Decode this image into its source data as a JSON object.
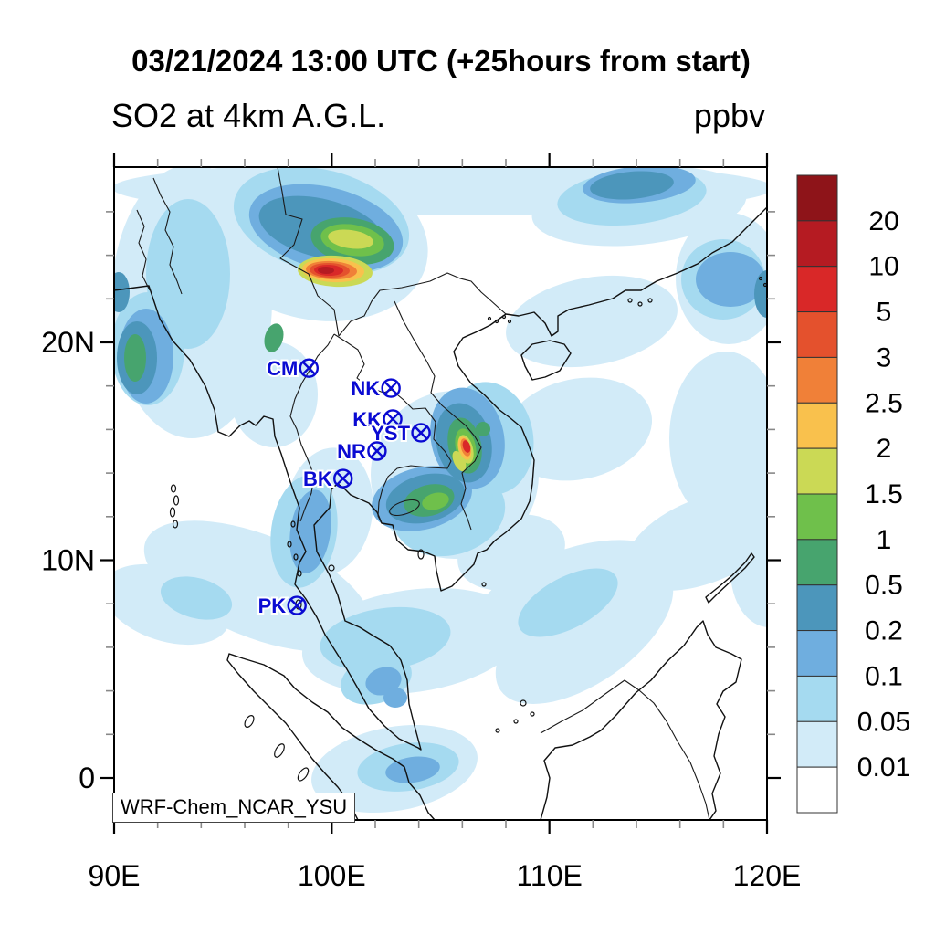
{
  "header": {
    "title": "03/21/2024 13:00 UTC (+25hours from start)",
    "subtitle": "SO2 at 4km A.G.L.",
    "units_label": "ppbv"
  },
  "model_label": "WRF-Chem_NCAR_YSU",
  "axes": {
    "x": {
      "majors": [
        {
          "value": 90,
          "label": "90E"
        },
        {
          "value": 100,
          "label": "100E"
        },
        {
          "value": 110,
          "label": "110E"
        },
        {
          "value": 120,
          "label": "120E"
        }
      ],
      "minor_step": 2,
      "range": [
        90,
        120
      ]
    },
    "y": {
      "majors": [
        {
          "value": 0,
          "label": "0"
        },
        {
          "value": 10,
          "label": "10N"
        },
        {
          "value": 20,
          "label": "20N"
        }
      ],
      "minor_step": 2,
      "range": [
        -1.93,
        28.05
      ]
    }
  },
  "colorbar": {
    "cells_top_to_bottom": [
      "#8E1419",
      "#B51B22",
      "#D92828",
      "#E4512D",
      "#F08038",
      "#F9C14D",
      "#CBD955",
      "#6FC04B",
      "#47A46E",
      "#4C96BB",
      "#6FAEDF",
      "#A5DAF0",
      "#D2EBF8",
      "#FFFFFF"
    ],
    "boundary_labels_top_to_bottom": [
      "20",
      "10",
      "5",
      "3",
      "2.5",
      "2",
      "1.5",
      "1",
      "0.5",
      "0.2",
      "0.1",
      "0.05",
      "0.01"
    ]
  },
  "stations": [
    {
      "id": "CM",
      "lon_e": 98.95,
      "lat_n": 18.82,
      "marker": "circle-cross"
    },
    {
      "id": "NK",
      "lon_e": 102.72,
      "lat_n": 17.9,
      "marker": "circle-cross"
    },
    {
      "id": "KK",
      "lon_e": 102.8,
      "lat_n": 16.48,
      "marker": "circle-cross"
    },
    {
      "id": "YST",
      "lon_e": 104.1,
      "lat_n": 15.85,
      "marker": "circle-cross"
    },
    {
      "id": "NR",
      "lon_e": 102.08,
      "lat_n": 15.01,
      "marker": "circle-cross"
    },
    {
      "id": "BK",
      "lon_e": 100.52,
      "lat_n": 13.75,
      "marker": "circle-cross"
    },
    {
      "id": "PK",
      "lon_e": 98.4,
      "lat_n": 7.92,
      "marker": "circle-cross"
    }
  ],
  "station_color": "#0a0ad2",
  "chart_data": {
    "type": "heatmap",
    "title": "SO2 at 4km A.G.L.",
    "valid_time": "03/21/2024 13:00 UTC",
    "forecast_note": "+25hours from start",
    "units": "ppbv",
    "model": "WRF-Chem_NCAR_YSU",
    "projection": "lat-lon map, Southeast Asia",
    "x_ticks": [
      "90E",
      "100E",
      "110E",
      "120E"
    ],
    "y_ticks": [
      "0",
      "10N",
      "20N"
    ],
    "lon_range_e": [
      90,
      120
    ],
    "lat_range_n": [
      -2,
      28
    ],
    "contour_levels_ppbv": [
      0.01,
      0.05,
      0.1,
      0.2,
      0.5,
      1,
      1.5,
      2,
      2.5,
      3,
      5,
      10,
      20
    ],
    "palette_low_to_high": [
      "#FFFFFF",
      "#D2EBF8",
      "#A5DAF0",
      "#6FAEDF",
      "#4C96BB",
      "#47A46E",
      "#6FC04B",
      "#CBD955",
      "#F9C14D",
      "#F08038",
      "#E4512D",
      "#D92828",
      "#B51B22",
      "#8E1419"
    ],
    "legend_position": "right",
    "grid": false,
    "stations": [
      {
        "id": "CM",
        "lon_e": 98.95,
        "lat_n": 18.82
      },
      {
        "id": "NK",
        "lon_e": 102.72,
        "lat_n": 17.9
      },
      {
        "id": "KK",
        "lon_e": 102.8,
        "lat_n": 16.48
      },
      {
        "id": "YST",
        "lon_e": 104.1,
        "lat_n": 15.85
      },
      {
        "id": "NR",
        "lon_e": 102.08,
        "lat_n": 15.01
      },
      {
        "id": "BK",
        "lon_e": 100.52,
        "lat_n": 13.75
      },
      {
        "id": "PK",
        "lon_e": 98.4,
        "lat_n": 7.92
      }
    ],
    "hotspots": [
      {
        "region": "eastern Myanmar / Shan highlands",
        "approx_lon_e": 99.9,
        "approx_lat_n": 23.3,
        "peak_band_ppbv": "10-20"
      },
      {
        "region": "central Vietnam Annamite range",
        "approx_lon_e": 106.2,
        "approx_lat_n": 15.2,
        "peak_band_ppbv": "5-10"
      },
      {
        "region": "south China coast offshore band",
        "approx_lon_e": 114.0,
        "approx_lat_n": 27.0,
        "peak_band_ppbv": "0.2-0.5"
      }
    ]
  }
}
